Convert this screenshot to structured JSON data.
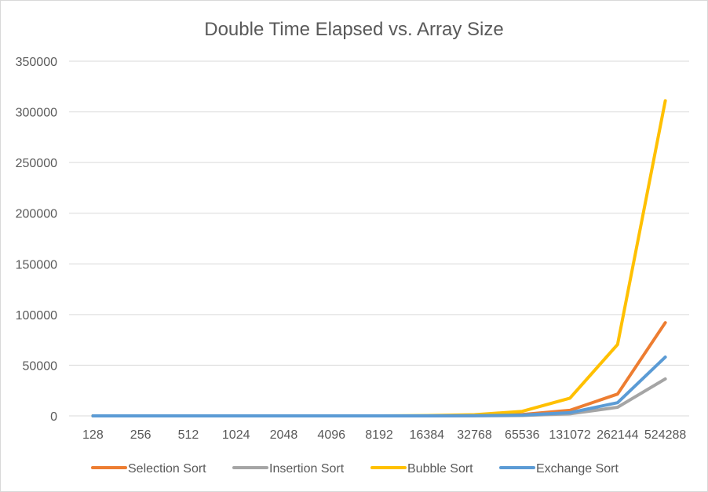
{
  "chart_data": {
    "type": "line",
    "title": "Double Time Elapsed vs. Array Size",
    "xlabel": "",
    "ylabel": "",
    "categories": [
      "128",
      "256",
      "512",
      "1024",
      "2048",
      "4096",
      "8192",
      "16384",
      "32768",
      "65536",
      "131072",
      "262144",
      "524288"
    ],
    "ylim": [
      0,
      350000
    ],
    "yticks": [
      "0",
      "50000",
      "100000",
      "150000",
      "200000",
      "250000",
      "300000",
      "350000"
    ],
    "grid": "horizontal",
    "legend_position": "bottom",
    "series": [
      {
        "name": "Selection Sort",
        "color": "#ED7D31",
        "values": [
          0,
          0,
          0,
          0,
          0,
          0,
          0,
          0,
          300,
          1300,
          5500,
          21500,
          92000
        ]
      },
      {
        "name": "Insertion Sort",
        "color": "#A5A5A5",
        "values": [
          0,
          0,
          0,
          0,
          0,
          0,
          0,
          0,
          100,
          400,
          2000,
          8500,
          36500
        ]
      },
      {
        "name": "Bubble Sort",
        "color": "#FFC000",
        "values": [
          0,
          0,
          0,
          0,
          0,
          0,
          0,
          300,
          1200,
          4500,
          17500,
          70500,
          311000
        ]
      },
      {
        "name": "Exchange Sort",
        "color": "#5B9BD5",
        "values": [
          0,
          0,
          0,
          0,
          0,
          0,
          0,
          0,
          200,
          800,
          3200,
          13000,
          58000
        ]
      }
    ]
  }
}
